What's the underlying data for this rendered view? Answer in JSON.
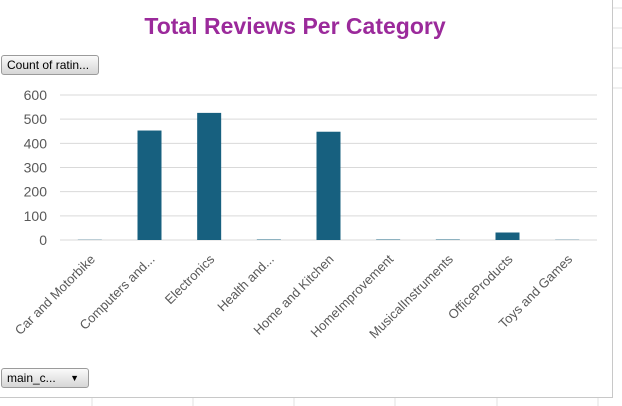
{
  "colors": {
    "title": "#9b2a9b",
    "bar": "#17607f",
    "gridline": "#d9d9d9",
    "axis_text": "#595959",
    "sheet_grid": "#e0e0e0"
  },
  "pivot": {
    "value_field_label": "Count of ratin...",
    "axis_field_label": "main_c...",
    "axis_field_icon": "dropdown-arrow-icon"
  },
  "chart_data": {
    "type": "bar",
    "title": "Total Reviews Per Category",
    "xlabel": "",
    "ylabel": "",
    "categories": [
      "Car and Motorbike",
      "Computers and...",
      "Electronics",
      "Health and...",
      "Home and Kitchen",
      "HomeImprovement",
      "MusicalInstruments",
      "OfficeProducts",
      "Toys and Games"
    ],
    "values": [
      1,
      453,
      526,
      2,
      448,
      2,
      2,
      31,
      1
    ],
    "ylim": [
      0,
      600
    ],
    "yticks": [
      0,
      100,
      200,
      300,
      400,
      500,
      600
    ],
    "grid": true,
    "legend": "none"
  }
}
